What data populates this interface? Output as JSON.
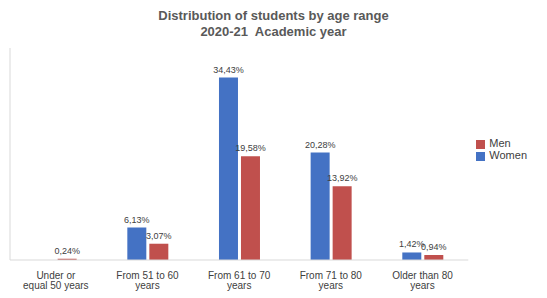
{
  "chart_data": {
    "type": "bar",
    "title": "Distribution of students by age range",
    "subtitle": "2020-21  Academic year",
    "categories": [
      "Under or equal 50 years",
      "From 51 to 60 years",
      "From 61 to 70 years",
      "From 71 to 80 years",
      "Older than 80 years"
    ],
    "series": [
      {
        "name": "Women",
        "color": "#4472c4",
        "values": [
          null,
          6.13,
          34.43,
          20.28,
          1.42
        ],
        "value_labels": [
          null,
          "6,13%",
          "34,43%",
          "20,28%",
          "1,42%"
        ]
      },
      {
        "name": "Men",
        "color": "#c0504d",
        "values": [
          0.24,
          3.07,
          19.58,
          13.92,
          0.94
        ],
        "value_labels": [
          "0,24%",
          "3,07%",
          "19,58%",
          "13,92%",
          "0,94%"
        ]
      }
    ],
    "ylim": [
      0,
      40
    ],
    "grid": false,
    "legend": "right",
    "data_labels": true,
    "tick_labels": "x"
  }
}
